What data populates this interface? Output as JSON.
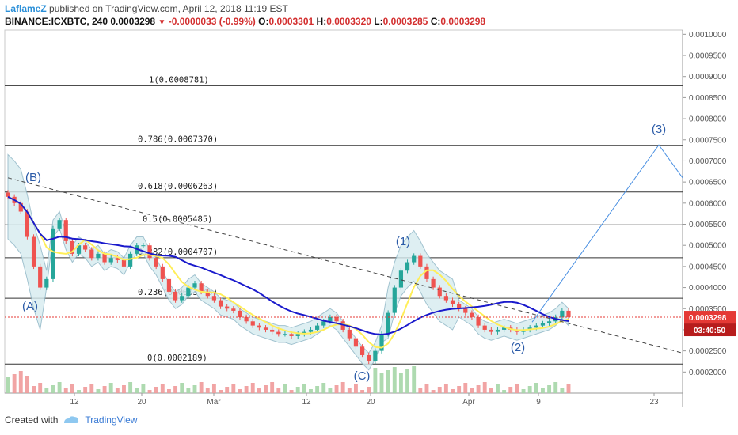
{
  "header": {
    "author": "LaflameZ",
    "published": "published on TradingView.com, April 12, 2018 11:19 EST"
  },
  "ohlc": {
    "symbol": "BINANCE:ICXBTC, 240",
    "price": "0.0003298",
    "change": "-0.0000033 (-0.99%)",
    "o_label": "O:",
    "o": "0.0003301",
    "h_label": "H:",
    "h": "0.0003320",
    "l_label": "L:",
    "l": "0.0003285",
    "c_label": "C:",
    "c": "0.0003298"
  },
  "footer": {
    "created_with": "Created with",
    "brand": "TradingView"
  },
  "colors": {
    "up": "#26a69a",
    "down": "#ef5350",
    "ma_fast": "#ffee58",
    "ma_slow": "#1a1acc",
    "bollinger": "#8ab4c4",
    "bollinger_fill": "#d7ecf0",
    "projection": "#4a90e2",
    "last_price": "#e53935",
    "countdown": "#b71c1c",
    "wave": "#2b5ba8"
  },
  "chart_data": {
    "type": "candlestick",
    "ylim": [
      0.00015,
      0.00101
    ],
    "y_ticks": [
      "0.0002000",
      "0.0002500",
      "0.0003000",
      "0.0003500",
      "0.0004000",
      "0.0004500",
      "0.0005000",
      "0.0005500",
      "0.0006000",
      "0.0006500",
      "0.0007000",
      "0.0007500",
      "0.0008000",
      "0.0008500",
      "0.0009000",
      "0.0009500",
      "0.0010000"
    ],
    "x_ticks": [
      "12",
      "20",
      "Mar",
      "12",
      "20",
      "Apr",
      "9",
      "23"
    ],
    "fib_levels": [
      {
        "label": "1(0.0008781)",
        "value": 0.0008781
      },
      {
        "label": "0.786(0.0007370)",
        "value": 0.000737
      },
      {
        "label": "0.618(0.0006263)",
        "value": 0.0006263
      },
      {
        "label": "0.5(0.0005485)",
        "value": 0.0005485
      },
      {
        "label": "0.382(0.0004707)",
        "value": 0.0004707
      },
      {
        "label": "0.236(0.0003745)",
        "value": 0.0003745
      },
      {
        "label": "0(0.0002189)",
        "value": 0.0002189
      }
    ],
    "waves": [
      {
        "label": "(A)",
        "value": 0.000378
      },
      {
        "label": "(B)",
        "value": 0.00066
      },
      {
        "label": "(C)",
        "value": 0.000208
      },
      {
        "label": "(1)",
        "value": 0.000488
      },
      {
        "label": "(2)",
        "value": 0.000282
      },
      {
        "label": "(3)",
        "value": 0.000758
      }
    ],
    "last_price": {
      "label": "0.0003298",
      "value": 0.0003298
    },
    "countdown": "03:40:50",
    "closes": [
      0.000615,
      0.0006,
      0.00058,
      0.00052,
      0.00045,
      0.0004,
      0.00042,
      0.00054,
      0.00056,
      0.00051,
      0.00048,
      0.0005,
      0.00049,
      0.00047,
      0.00048,
      0.00046,
      0.00047,
      0.000465,
      0.00045,
      0.00048,
      0.0005,
      0.0005,
      0.00047,
      0.00045,
      0.00042,
      0.00039,
      0.00037,
      0.00038,
      0.0004,
      0.00041,
      0.00039,
      0.00038,
      0.00037,
      0.000355,
      0.00035,
      0.000345,
      0.00033,
      0.00032,
      0.00031,
      0.000305,
      0.0003,
      0.000295,
      0.00029,
      0.00029,
      0.000285,
      0.00029,
      0.000295,
      0.0003,
      0.00031,
      0.00032,
      0.00033,
      0.00032,
      0.0003,
      0.00028,
      0.00026,
      0.00024,
      0.000225,
      0.00025,
      0.00029,
      0.00034,
      0.0004,
      0.00044,
      0.00046,
      0.000475,
      0.00045,
      0.00042,
      0.0004,
      0.00038,
      0.00037,
      0.00036,
      0.00035,
      0.00034,
      0.00033,
      0.00031,
      0.0003,
      0.000295,
      0.0003,
      0.000305,
      0.0003,
      0.000295,
      0.0003,
      0.000305,
      0.00031,
      0.000315,
      0.00032,
      0.00033,
      0.000345,
      0.00033
    ]
  }
}
